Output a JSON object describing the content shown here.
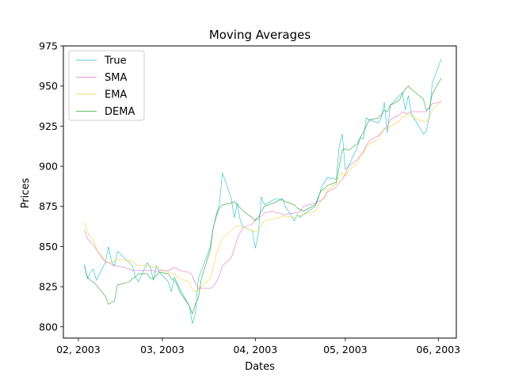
{
  "chart_data": {
    "type": "line",
    "title": "Moving Averages",
    "xlabel": "Dates",
    "ylabel": "Prices",
    "ylim": [
      793,
      975
    ],
    "xlim": [
      "2003-01-27",
      "2003-06-07"
    ],
    "yticks": [
      800,
      825,
      850,
      875,
      900,
      925,
      950,
      975
    ],
    "xticks": [
      {
        "date": "2003-02-01",
        "label": "02, 2003"
      },
      {
        "date": "2003-03-01",
        "label": "03, 2003"
      },
      {
        "date": "2003-04-01",
        "label": "04, 2003"
      },
      {
        "date": "2003-05-01",
        "label": "05, 2003"
      },
      {
        "date": "2003-06-01",
        "label": "06, 2003"
      }
    ],
    "grid": false,
    "legend": "top-left",
    "x": [
      "2003-02-03",
      "2003-02-04",
      "2003-02-05",
      "2003-02-06",
      "2003-02-07",
      "2003-02-10",
      "2003-02-11",
      "2003-02-12",
      "2003-02-13",
      "2003-02-14",
      "2003-02-18",
      "2003-02-19",
      "2003-02-20",
      "2003-02-21",
      "2003-02-24",
      "2003-02-25",
      "2003-02-26",
      "2003-02-27",
      "2003-02-28",
      "2003-03-03",
      "2003-03-04",
      "2003-03-05",
      "2003-03-06",
      "2003-03-07",
      "2003-03-10",
      "2003-03-11",
      "2003-03-12",
      "2003-03-13",
      "2003-03-14",
      "2003-03-17",
      "2003-03-18",
      "2003-03-19",
      "2003-03-20",
      "2003-03-21",
      "2003-03-24",
      "2003-03-25",
      "2003-03-26",
      "2003-03-27",
      "2003-03-28",
      "2003-03-31",
      "2003-04-01",
      "2003-04-02",
      "2003-04-03",
      "2003-04-04",
      "2003-04-07",
      "2003-04-08",
      "2003-04-09",
      "2003-04-10",
      "2003-04-11",
      "2003-04-14",
      "2003-04-15",
      "2003-04-16",
      "2003-04-17",
      "2003-04-21",
      "2003-04-22",
      "2003-04-23",
      "2003-04-24",
      "2003-04-25",
      "2003-04-28",
      "2003-04-29",
      "2003-04-30",
      "2003-05-01",
      "2003-05-02",
      "2003-05-05",
      "2003-05-06",
      "2003-05-07",
      "2003-05-08",
      "2003-05-09",
      "2003-05-12",
      "2003-05-13",
      "2003-05-14",
      "2003-05-15",
      "2003-05-16",
      "2003-05-19",
      "2003-05-20",
      "2003-05-21",
      "2003-05-22",
      "2003-05-23",
      "2003-05-27",
      "2003-05-28",
      "2003-05-29",
      "2003-05-30",
      "2003-06-02"
    ],
    "series": [
      {
        "name": "True",
        "color": "#17becf",
        "values": [
          839,
          830,
          834,
          836,
          829,
          840,
          850,
          841,
          838,
          847,
          840,
          838,
          831,
          828,
          840,
          837,
          829,
          838,
          834,
          828,
          822,
          831,
          827,
          823,
          813,
          802,
          808,
          830,
          835,
          850,
          862,
          870,
          876,
          896,
          880,
          868,
          877,
          866,
          862,
          860,
          849,
          858,
          881,
          876,
          879,
          880,
          879,
          880,
          875,
          866,
          870,
          868,
          870,
          875,
          880,
          887,
          890,
          893,
          892,
          913,
          920,
          898,
          900,
          912,
          918,
          917,
          930,
          929,
          927,
          930,
          940,
          921,
          938,
          944,
          946,
          935,
          944,
          933,
          920,
          922,
          931,
          952,
          967
        ]
      },
      {
        "name": "SMA",
        "color": "#e377c2",
        "values": [
          860,
          855,
          853,
          851,
          848,
          840,
          840,
          839,
          838,
          838,
          836,
          835,
          835,
          835,
          835,
          835,
          835,
          834,
          835,
          835,
          836,
          837,
          836,
          835,
          834,
          832,
          827,
          824,
          824,
          824,
          825,
          828,
          832,
          838,
          843,
          849,
          855,
          859,
          862,
          864,
          867,
          868,
          869,
          871,
          872,
          871,
          871,
          870,
          870,
          871,
          871,
          872,
          875,
          877,
          878,
          879,
          880,
          884,
          887,
          890,
          892,
          895,
          900,
          904,
          907,
          909,
          913,
          916,
          919,
          921,
          923,
          925,
          929,
          932,
          934,
          933,
          933,
          934,
          934,
          934,
          937,
          939,
          940
        ]
      },
      {
        "name": "EMA",
        "color": "#f2d33c",
        "values": [
          865,
          859,
          856,
          854,
          849,
          841,
          840,
          840,
          841,
          842,
          841,
          841,
          839,
          838,
          838,
          838,
          837,
          837,
          836,
          834,
          833,
          833,
          831,
          830,
          828,
          823,
          822,
          823,
          825,
          830,
          837,
          845,
          850,
          855,
          860,
          862,
          863,
          863,
          862,
          860,
          859,
          860,
          863,
          866,
          867,
          868,
          868,
          869,
          869,
          868,
          869,
          869,
          870,
          872,
          875,
          879,
          881,
          885,
          889,
          894,
          896,
          894,
          897,
          902,
          906,
          908,
          912,
          914,
          917,
          920,
          924,
          923,
          925,
          928,
          931,
          931,
          933,
          931,
          928,
          928,
          930,
          935,
          941
        ]
      },
      {
        "name": "DEMA",
        "color": "#2ca02c",
        "values": [
          838,
          831,
          829,
          828,
          826,
          819,
          814,
          815,
          816,
          826,
          828,
          830,
          831,
          833,
          833,
          830,
          830,
          832,
          834,
          833,
          830,
          829,
          826,
          821,
          813,
          808,
          814,
          818,
          830,
          848,
          862,
          869,
          874,
          876,
          877,
          878,
          876,
          874,
          872,
          868,
          866,
          868,
          872,
          875,
          877,
          878,
          879,
          879,
          878,
          876,
          874,
          873,
          872,
          876,
          881,
          885,
          886,
          888,
          890,
          900,
          910,
          911,
          910,
          914,
          918,
          921,
          925,
          929,
          930,
          932,
          935,
          934,
          938,
          941,
          945,
          948,
          950,
          948,
          942,
          935,
          936,
          945,
          955
        ]
      }
    ]
  }
}
